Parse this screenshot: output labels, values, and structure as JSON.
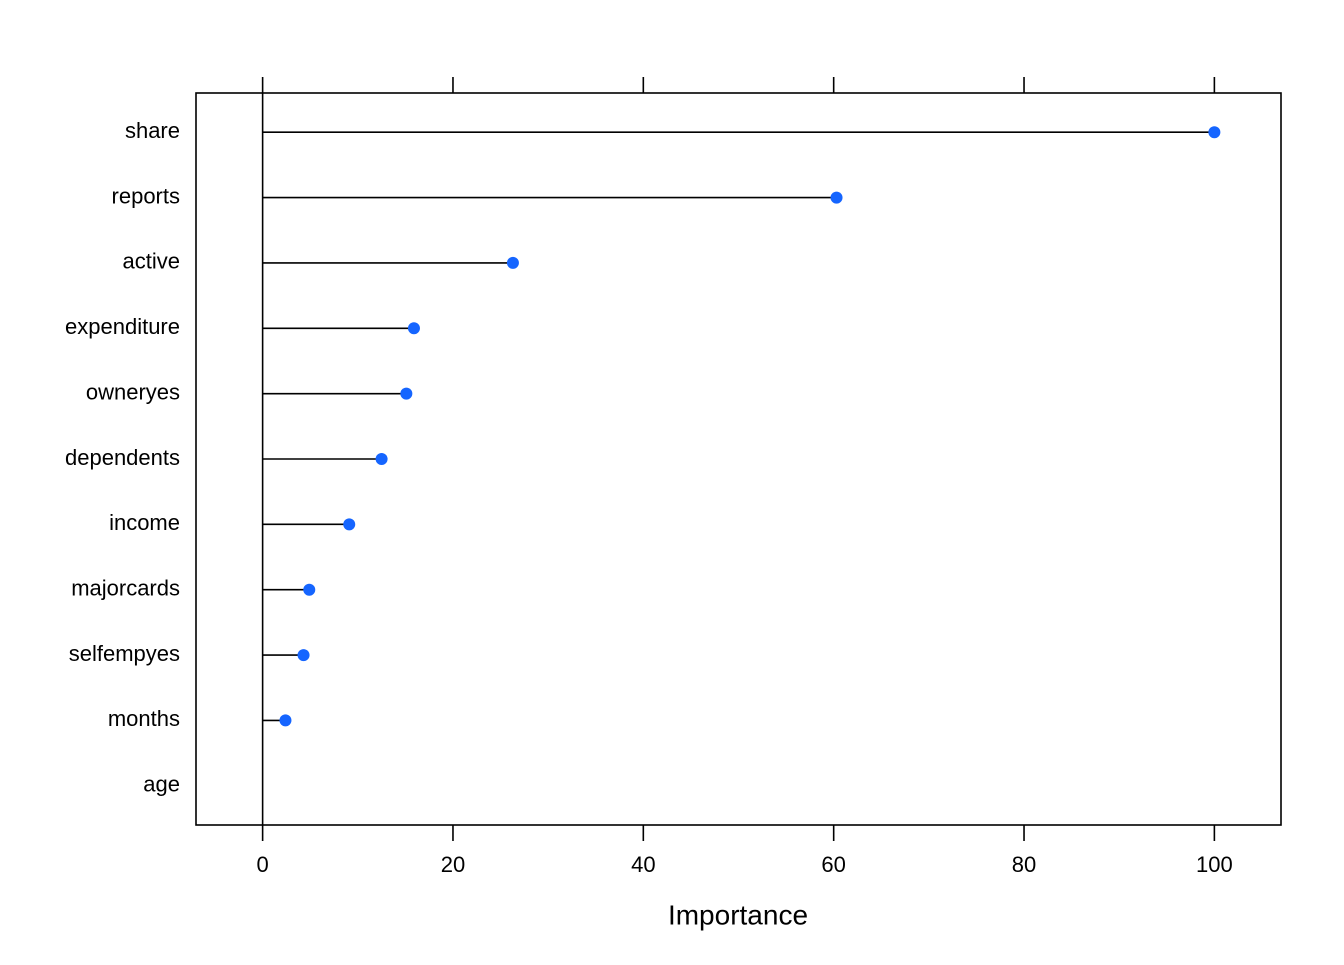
{
  "chart_data": {
    "type": "dotplot",
    "xlabel": "Importance",
    "categories": [
      "share",
      "reports",
      "active",
      "expenditure",
      "owneryes",
      "dependents",
      "income",
      "majorcards",
      "selfempyes",
      "months",
      "age"
    ],
    "values": [
      100,
      60.3,
      26.3,
      15.9,
      15.1,
      12.5,
      9.1,
      4.9,
      4.3,
      2.4,
      null
    ],
    "color": "#1565ff",
    "xlim": [
      -7,
      107
    ],
    "xticks": [
      0,
      20,
      40,
      60,
      80,
      100
    ]
  }
}
